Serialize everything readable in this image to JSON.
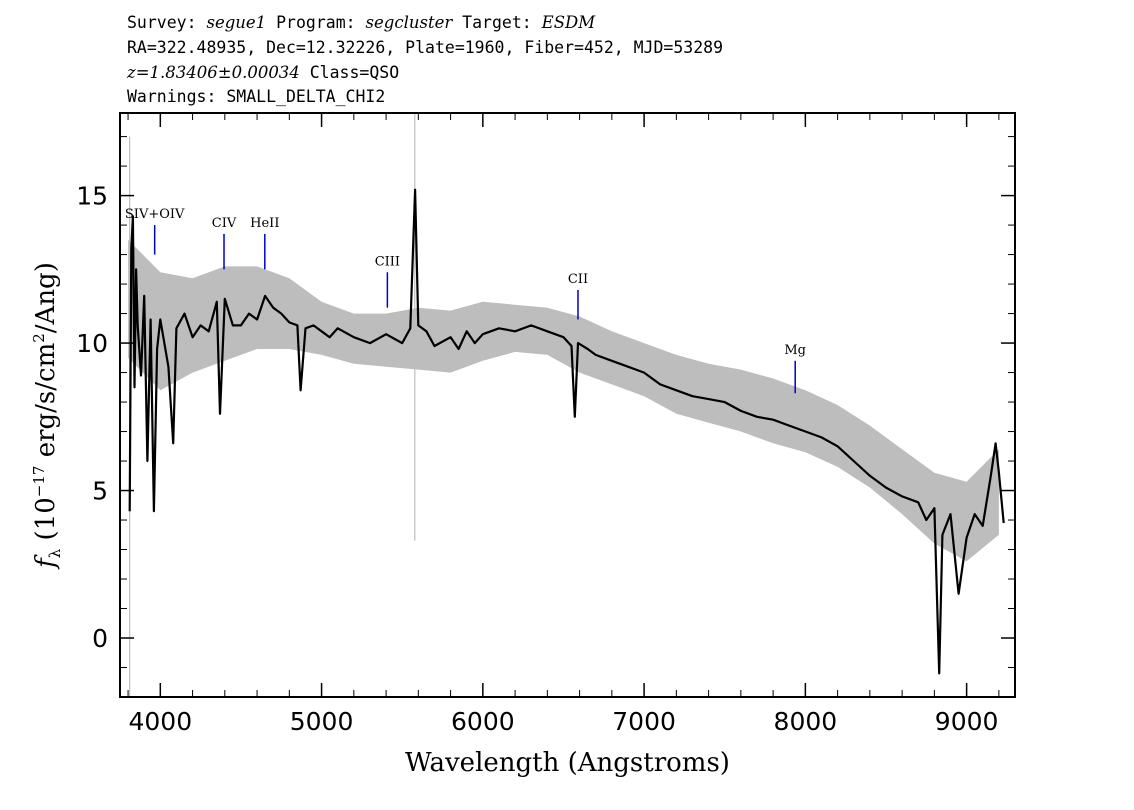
{
  "header": {
    "line1": {
      "survey_label": "Survey:",
      "survey": "segue1",
      "program_label": "Program:",
      "program": "segcluster",
      "target_label": "Target:",
      "target": "ESDM"
    },
    "line2": "RA=322.48935, Dec=12.32226, Plate=1960, Fiber=452, MJD=53289",
    "line3": {
      "redshift": "z=1.83406±0.00034",
      "class": "Class=QSO"
    },
    "line4": "Warnings: SMALL_DELTA_CHI2"
  },
  "chart_data": {
    "type": "line",
    "xlabel": "Wavelength (Angstroms)",
    "ylabel_parts": {
      "f": "f",
      "sub": "λ",
      "pre": " (10",
      "exp1": "−17",
      "mid": " erg/s/cm",
      "exp2": "2",
      "post": "/Ang)"
    },
    "xlim": [
      3750,
      9300
    ],
    "ylim": [
      -2,
      17.8
    ],
    "xticks": [
      4000,
      5000,
      6000,
      7000,
      8000,
      9000
    ],
    "yticks": [
      0,
      5,
      10,
      15
    ],
    "series": [
      {
        "role": "flux",
        "color": "#000000",
        "x": [
          3810,
          3820,
          3830,
          3840,
          3850,
          3860,
          3880,
          3900,
          3920,
          3940,
          3960,
          3980,
          4000,
          4050,
          4080,
          4100,
          4150,
          4200,
          4250,
          4300,
          4350,
          4370,
          4400,
          4450,
          4500,
          4550,
          4600,
          4650,
          4700,
          4750,
          4800,
          4850,
          4870,
          4900,
          4950,
          5000,
          5050,
          5100,
          5200,
          5300,
          5400,
          5500,
          5550,
          5580,
          5600,
          5650,
          5700,
          5800,
          5850,
          5900,
          5950,
          6000,
          6100,
          6200,
          6300,
          6400,
          6500,
          6550,
          6570,
          6590,
          6650,
          6700,
          6800,
          6900,
          7000,
          7100,
          7200,
          7300,
          7400,
          7500,
          7600,
          7700,
          7800,
          7900,
          8000,
          8100,
          8200,
          8300,
          8400,
          8500,
          8600,
          8700,
          8750,
          8800,
          8830,
          8850,
          8900,
          8950,
          9000,
          9050,
          9100,
          9150,
          9180,
          9200,
          9230
        ],
        "y": [
          4.3,
          13.2,
          14.3,
          8.5,
          12.5,
          10.6,
          8.9,
          11.6,
          6.0,
          10.8,
          4.3,
          9.8,
          10.8,
          9.2,
          6.6,
          10.5,
          11.0,
          10.2,
          10.6,
          10.4,
          11.4,
          7.6,
          11.5,
          10.6,
          10.6,
          11.0,
          10.8,
          11.6,
          11.2,
          11.0,
          10.7,
          10.6,
          8.4,
          10.5,
          10.6,
          10.4,
          10.2,
          10.5,
          10.2,
          10.0,
          10.3,
          10.0,
          10.5,
          15.2,
          10.6,
          10.4,
          9.9,
          10.2,
          9.8,
          10.4,
          10.0,
          10.3,
          10.5,
          10.4,
          10.6,
          10.4,
          10.2,
          9.9,
          7.5,
          10.0,
          9.8,
          9.6,
          9.4,
          9.2,
          9.0,
          8.6,
          8.4,
          8.2,
          8.1,
          8.0,
          7.7,
          7.5,
          7.4,
          7.2,
          7.0,
          6.8,
          6.5,
          6.0,
          5.5,
          5.1,
          4.8,
          4.6,
          4.0,
          4.4,
          -1.2,
          3.5,
          4.2,
          1.5,
          3.4,
          4.2,
          3.8,
          5.5,
          6.6,
          5.6,
          3.9
        ]
      },
      {
        "role": "error-envelope",
        "color": "#bdbdbd",
        "x": [
          3800,
          4000,
          4200,
          4400,
          4600,
          4800,
          5000,
          5200,
          5400,
          5600,
          5800,
          6000,
          6200,
          6400,
          6600,
          6800,
          7000,
          7200,
          7400,
          7600,
          7800,
          8000,
          8200,
          8400,
          8600,
          8800,
          9000,
          9200
        ],
        "y_low": [
          9.5,
          8.4,
          9.0,
          9.4,
          9.8,
          9.8,
          9.6,
          9.3,
          9.2,
          9.1,
          9.0,
          9.4,
          9.7,
          9.6,
          9.0,
          8.6,
          8.2,
          7.6,
          7.3,
          7.0,
          6.6,
          6.3,
          5.8,
          5.1,
          4.2,
          3.2,
          2.6,
          3.5
        ],
        "y_high": [
          13.5,
          12.4,
          12.2,
          12.6,
          12.6,
          12.2,
          11.4,
          11.0,
          11.0,
          11.2,
          11.1,
          11.4,
          11.3,
          11.2,
          10.9,
          10.4,
          10.0,
          9.6,
          9.3,
          9.1,
          8.8,
          8.4,
          7.9,
          7.2,
          6.4,
          5.6,
          5.3,
          6.4
        ]
      }
    ],
    "spike_lines": [
      {
        "x": 3810,
        "y_from": -2,
        "y_to": 17
      },
      {
        "x": 5578,
        "y_from": 3.3,
        "y_to": 17.8
      }
    ],
    "line_markers": [
      {
        "label": "SIV+OIV",
        "x": 3965,
        "y_bottom": 13.0,
        "y_top": 14.0
      },
      {
        "label": "CIV",
        "x": 4395,
        "y_bottom": 12.5,
        "y_top": 13.7
      },
      {
        "label": "HeII",
        "x": 4648,
        "y_bottom": 12.5,
        "y_top": 13.7
      },
      {
        "label": "CIII",
        "x": 5408,
        "y_bottom": 11.2,
        "y_top": 12.4
      },
      {
        "label": "CII",
        "x": 6590,
        "y_bottom": 10.8,
        "y_top": 11.8
      },
      {
        "label": "Mg",
        "x": 7937,
        "y_bottom": 8.3,
        "y_top": 9.4
      }
    ],
    "marker_color": "#0000cc"
  }
}
